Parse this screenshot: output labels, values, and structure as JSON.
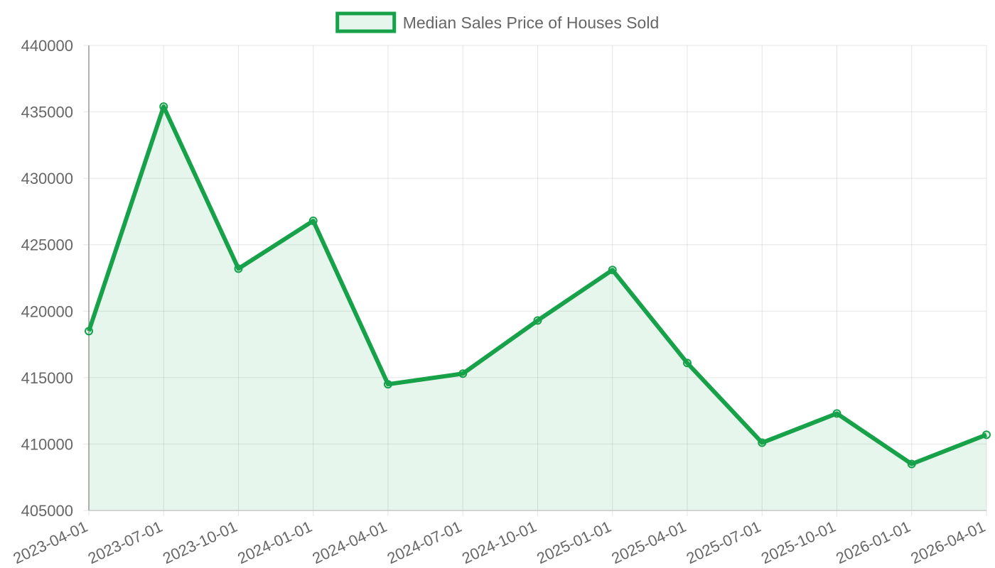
{
  "chart_data": {
    "type": "line",
    "categories": [
      "2023-04-01",
      "2023-07-01",
      "2023-10-01",
      "2024-01-01",
      "2024-04-01",
      "2024-07-01",
      "2024-10-01",
      "2025-01-01",
      "2025-04-01",
      "2025-07-01",
      "2025-10-01",
      "2026-01-01",
      "2026-04-01"
    ],
    "series": [
      {
        "name": "Median Sales Price of Houses Sold",
        "color": "#17a24a",
        "fill": "rgba(23,162,74,0.1)",
        "values": [
          418500,
          435400,
          423200,
          426800,
          414500,
          415300,
          419300,
          423100,
          416100,
          410100,
          412300,
          408500,
          410700
        ]
      }
    ],
    "ylim": [
      405000,
      440000
    ],
    "yticks": [
      405000,
      410000,
      415000,
      420000,
      425000,
      430000,
      435000,
      440000
    ],
    "grid": true,
    "legend": "top"
  }
}
